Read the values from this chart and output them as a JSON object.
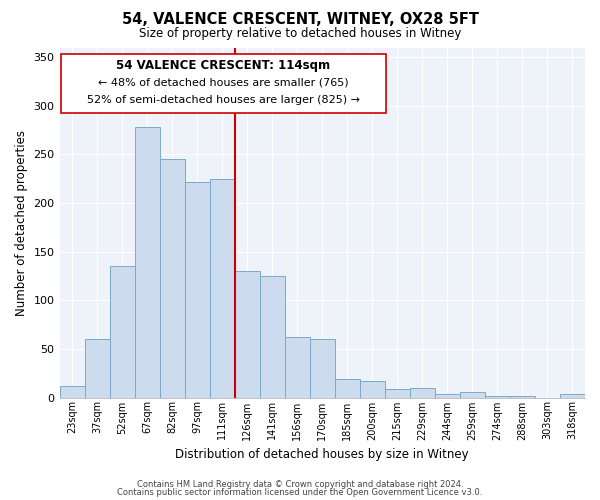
{
  "title": "54, VALENCE CRESCENT, WITNEY, OX28 5FT",
  "subtitle": "Size of property relative to detached houses in Witney",
  "xlabel": "Distribution of detached houses by size in Witney",
  "ylabel": "Number of detached properties",
  "categories": [
    "23sqm",
    "37sqm",
    "52sqm",
    "67sqm",
    "82sqm",
    "97sqm",
    "111sqm",
    "126sqm",
    "141sqm",
    "156sqm",
    "170sqm",
    "185sqm",
    "200sqm",
    "215sqm",
    "229sqm",
    "244sqm",
    "259sqm",
    "274sqm",
    "288sqm",
    "303sqm",
    "318sqm"
  ],
  "values": [
    12,
    60,
    135,
    278,
    245,
    222,
    225,
    130,
    125,
    62,
    60,
    19,
    17,
    9,
    10,
    4,
    6,
    2,
    2,
    0,
    4
  ],
  "bar_color": "#ccdcee",
  "bar_edge_color": "#7aaac8",
  "highlight_color": "#cc0000",
  "highlight_line_index": 6,
  "annotation_line1": "54 VALENCE CRESCENT: 114sqm",
  "annotation_line2": "← 48% of detached houses are smaller (765)",
  "annotation_line3": "52% of semi-detached houses are larger (825) →",
  "footer_line1": "Contains HM Land Registry data © Crown copyright and database right 2024.",
  "footer_line2": "Contains public sector information licensed under the Open Government Licence v3.0.",
  "ylim": [
    0,
    360
  ],
  "yticks": [
    0,
    50,
    100,
    150,
    200,
    250,
    300,
    350
  ],
  "figsize": [
    6.0,
    5.0
  ],
  "dpi": 100
}
